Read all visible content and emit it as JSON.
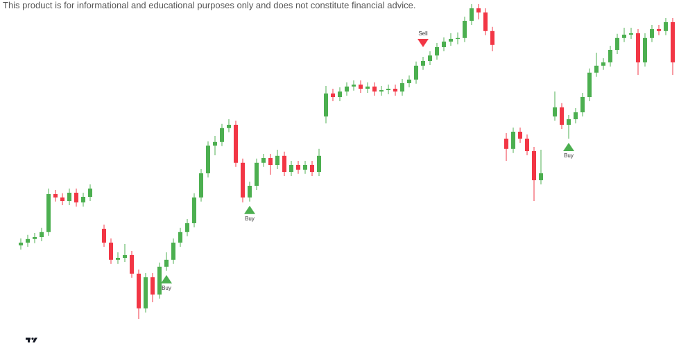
{
  "chart_data": {
    "type": "candlestick",
    "disclaimer": "This product is for informational and educational purposes only and does not constitute financial advice.",
    "up_color": "#4caf50",
    "down_color": "#f23645",
    "buy_color": "#4caf50",
    "sell_color": "#f23645",
    "ylim": [
      0,
      120
    ],
    "open": [
      31.5,
      32.5,
      33.8,
      34.5,
      36.3,
      50,
      48.8,
      47.5,
      50.5,
      47,
      49,
      null,
      37.5,
      32.5,
      26.3,
      27,
      28,
      21.3,
      8.8,
      20,
      13.8,
      23.8,
      26.3,
      32.5,
      36.3,
      39.5,
      48.8,
      57.5,
      67.5,
      68.8,
      73.8,
      75,
      61.3,
      48.8,
      53,
      61.3,
      63,
      60.5,
      63.8,
      58,
      60.5,
      58.8,
      60.5,
      58,
      78,
      86.3,
      85,
      87,
      88.8,
      89.5,
      88,
      88.8,
      87,
      87.5,
      88,
      87,
      90,
      91.3,
      96.3,
      98,
      100,
      103,
      105,
      106,
      106.3,
      112.5,
      117,
      115.5,
      108.8,
      null,
      70,
      66.3,
      72.5,
      70,
      65.5,
      55,
      null,
      78,
      81.3,
      75,
      77,
      79.5,
      85,
      93.8,
      96.3,
      97.5,
      102,
      106.3,
      107.5,
      108,
      97.5,
      106.3,
      109.5,
      108.8,
      112
    ],
    "high": [
      34,
      35.3,
      36,
      37.8,
      52,
      51.5,
      50.3,
      52,
      52,
      50.5,
      53.5,
      null,
      39,
      34,
      29,
      32,
      29.5,
      22.8,
      21.5,
      21.5,
      25.3,
      29,
      34,
      37.8,
      41,
      50.3,
      59,
      69,
      71,
      75.3,
      77,
      76.5,
      62.8,
      54.5,
      62.8,
      64.5,
      64.5,
      66,
      65.3,
      62,
      62,
      62,
      62,
      66.3,
      89,
      88,
      88.5,
      90.3,
      91,
      91,
      90.3,
      90.3,
      89,
      89.5,
      89.5,
      91.5,
      92.8,
      97.8,
      99.5,
      101.5,
      104.5,
      106.5,
      108,
      108.3,
      114,
      118.5,
      118.5,
      117,
      110.3,
      null,
      72,
      74,
      74,
      71.5,
      67,
      66,
      null,
      87,
      82.8,
      78.5,
      81,
      86.5,
      95.3,
      101,
      99,
      103.5,
      107.8,
      110,
      110,
      109.5,
      108,
      111,
      111,
      113.5,
      113.5
    ],
    "low": [
      30,
      31,
      32.3,
      33,
      35,
      47.3,
      46,
      46,
      45.5,
      45.5,
      47.5,
      null,
      31,
      24.8,
      24.8,
      25.5,
      19.8,
      5,
      7.3,
      11,
      12.3,
      22.3,
      24.8,
      31,
      34.8,
      38,
      47.3,
      56,
      64,
      67.3,
      72.3,
      59.8,
      47,
      47.3,
      51.5,
      59.8,
      57,
      59,
      56.5,
      56.5,
      57.3,
      57.3,
      56.5,
      56.5,
      75.5,
      83.5,
      83.5,
      85.5,
      87.3,
      86.5,
      86.5,
      85.5,
      85.5,
      86,
      85.5,
      85.5,
      88.5,
      89.8,
      94.8,
      96.5,
      98.5,
      101.5,
      103.5,
      104,
      104.8,
      111,
      113,
      107.3,
      101.5,
      null,
      62,
      64.8,
      68.5,
      64,
      47.5,
      53.5,
      null,
      76.5,
      73.5,
      70,
      75.5,
      78,
      83.5,
      92.3,
      94.8,
      96,
      100.5,
      104.8,
      106,
      93,
      96,
      104.8,
      107.3,
      107.3,
      93
    ],
    "close": [
      32.5,
      33.8,
      34.5,
      36.3,
      50,
      48.8,
      47.5,
      50.5,
      47,
      49,
      52,
      null,
      32.5,
      26.3,
      27,
      28,
      21.3,
      8.8,
      20,
      13.8,
      23.8,
      26.3,
      32.5,
      36.3,
      39.5,
      48.8,
      57.5,
      67.5,
      68.8,
      73.8,
      75,
      61.3,
      48.8,
      53,
      61.3,
      63,
      60.5,
      63.8,
      58,
      60.5,
      58.8,
      60.5,
      58,
      63.8,
      86.3,
      85,
      87,
      88.8,
      89.5,
      88,
      88.8,
      87,
      87.5,
      88,
      87,
      90,
      91.3,
      96.3,
      98,
      100,
      103,
      105,
      106,
      106.3,
      112.5,
      117,
      115.5,
      108.8,
      103.8,
      null,
      66.3,
      72.5,
      70,
      65.5,
      55,
      57.5,
      null,
      81.3,
      75,
      77,
      79.5,
      85,
      93.8,
      96.3,
      97.5,
      102,
      106.3,
      107.5,
      108,
      97.5,
      106.3,
      109.5,
      108.8,
      112,
      97.5
    ],
    "signals": [
      null,
      null,
      null,
      null,
      null,
      null,
      null,
      null,
      null,
      null,
      null,
      null,
      null,
      null,
      null,
      null,
      null,
      null,
      null,
      null,
      null,
      "Buy",
      null,
      null,
      null,
      null,
      null,
      null,
      null,
      null,
      null,
      null,
      null,
      "Buy",
      null,
      null,
      null,
      null,
      null,
      null,
      null,
      null,
      null,
      null,
      null,
      null,
      null,
      null,
      null,
      null,
      null,
      null,
      null,
      null,
      null,
      null,
      null,
      null,
      "Sell",
      null,
      null,
      null,
      null,
      null,
      null,
      null,
      null,
      null,
      null,
      null,
      null,
      null,
      null,
      null,
      null,
      null,
      null,
      null,
      null,
      "Buy",
      null,
      null,
      null,
      null,
      null,
      null,
      null,
      null,
      null,
      null,
      null,
      null,
      null,
      null,
      null
    ]
  }
}
